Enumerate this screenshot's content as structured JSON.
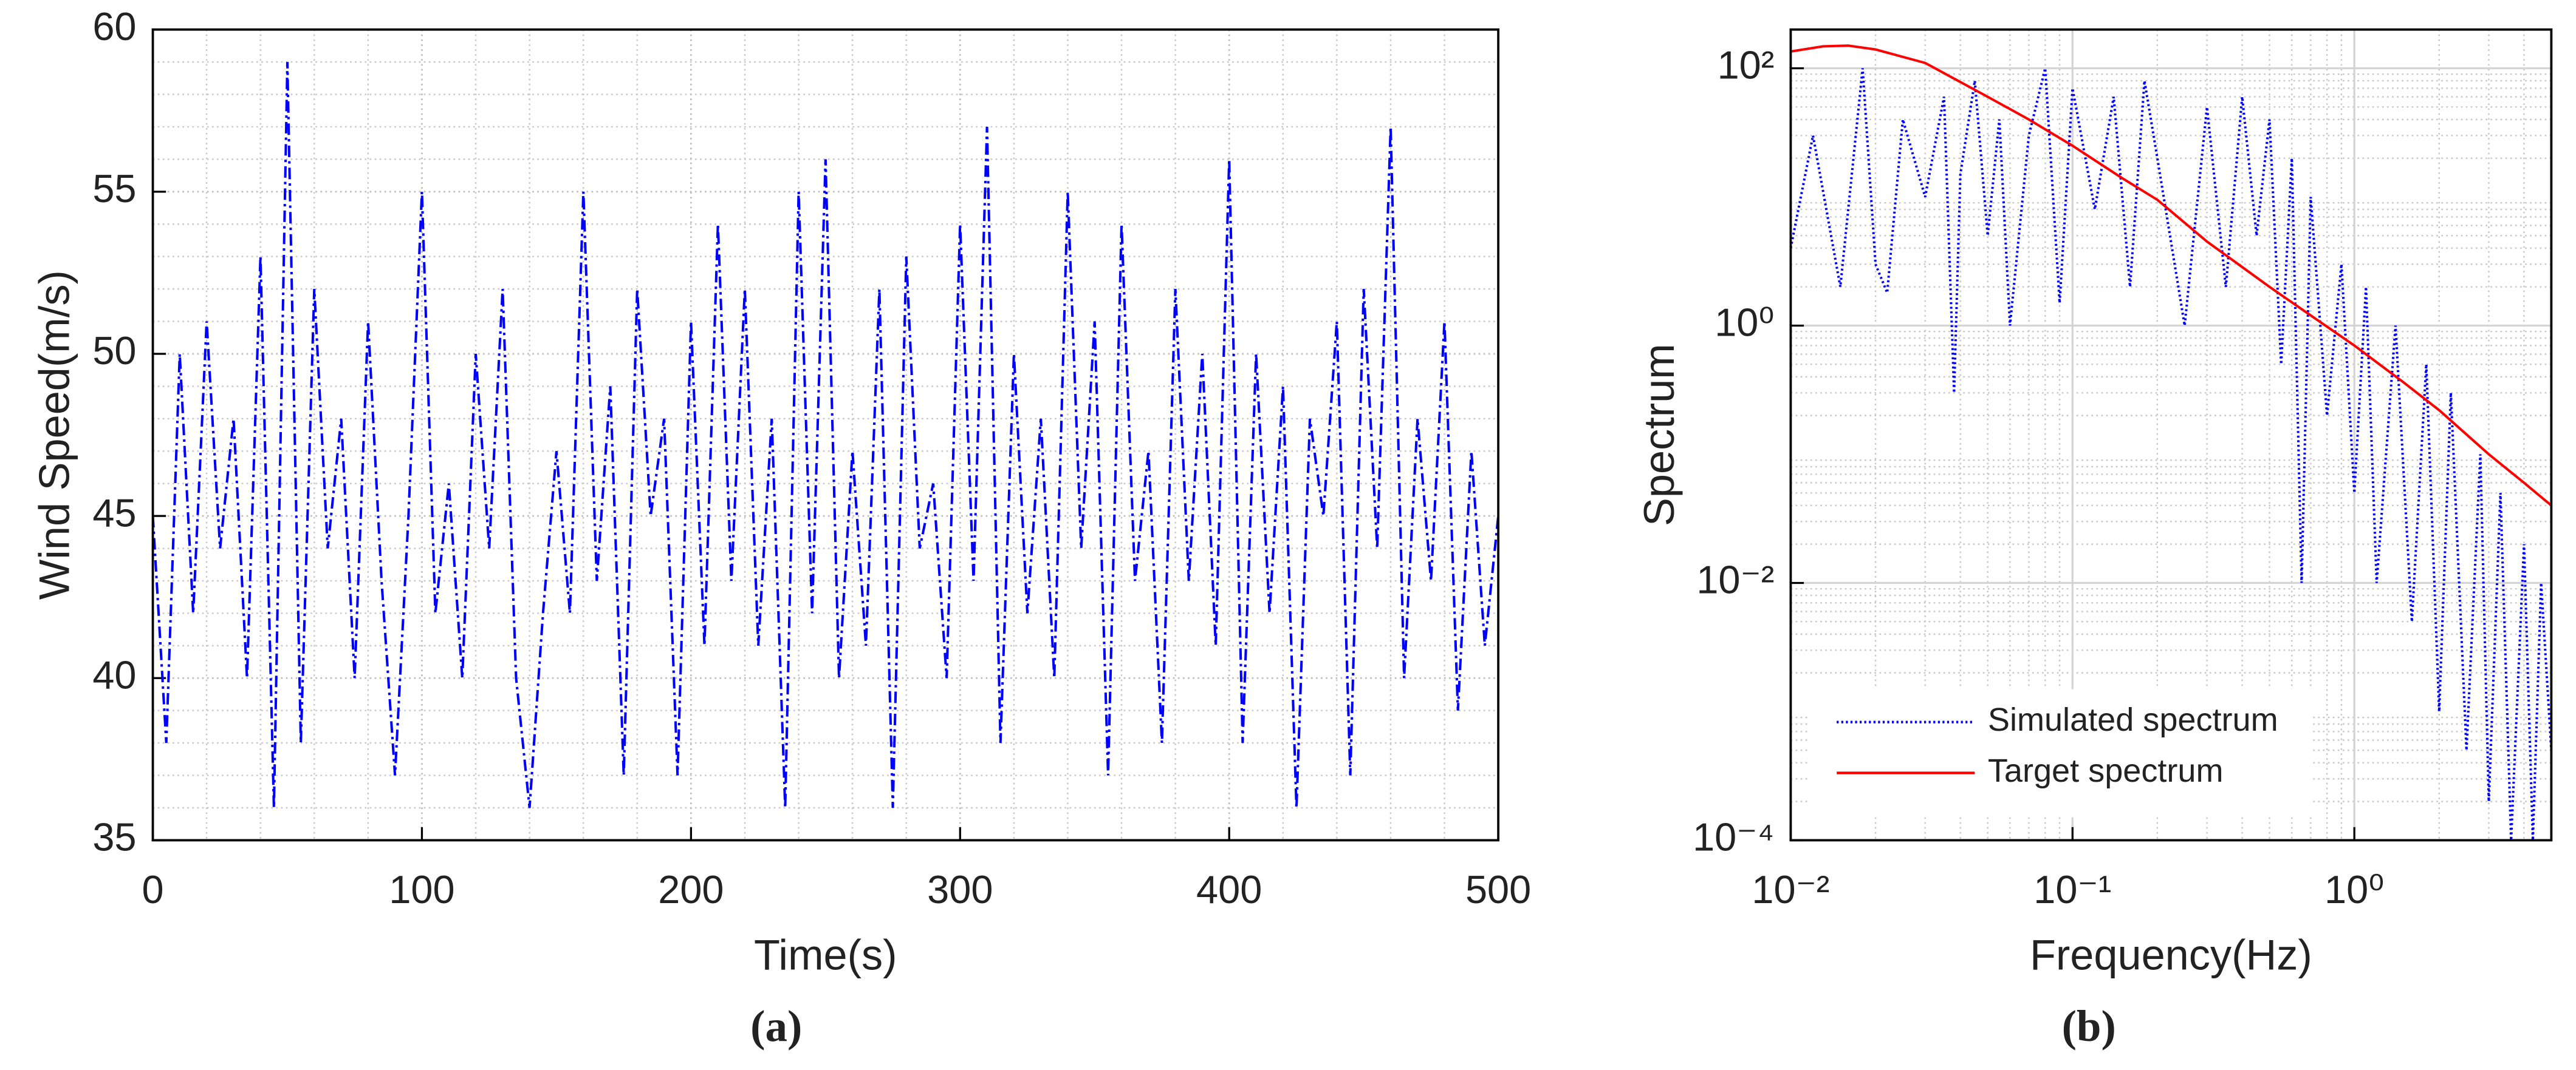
{
  "chart_data": [
    {
      "type": "line",
      "caption": "(a)",
      "xlabel": "Time(s)",
      "ylabel": "Wind Speed(m/s)",
      "xlim": [
        0,
        500
      ],
      "xticks": [
        0,
        100,
        200,
        300,
        400,
        500
      ],
      "ylim": [
        35,
        60
      ],
      "yticks": [
        35,
        40,
        45,
        50,
        55,
        60
      ],
      "grid": true,
      "minor_grid": true,
      "color": "#0000ff",
      "linestyle": "dashdot",
      "x": [
        0,
        5,
        10,
        15,
        20,
        25,
        30,
        35,
        40,
        45,
        50,
        55,
        60,
        65,
        70,
        75,
        80,
        85,
        90,
        95,
        100,
        105,
        110,
        115,
        120,
        125,
        130,
        135,
        140,
        145,
        150,
        155,
        160,
        165,
        170,
        175,
        180,
        185,
        190,
        195,
        200,
        205,
        210,
        215,
        220,
        225,
        230,
        235,
        240,
        245,
        250,
        255,
        260,
        265,
        270,
        275,
        280,
        285,
        290,
        295,
        300,
        305,
        310,
        315,
        320,
        325,
        330,
        335,
        340,
        345,
        350,
        355,
        360,
        365,
        370,
        375,
        380,
        385,
        390,
        395,
        400,
        405,
        410,
        415,
        420,
        425,
        430,
        435,
        440,
        445,
        450,
        455,
        460,
        465,
        470,
        475,
        480,
        485,
        490,
        495,
        500
      ],
      "values": [
        45,
        38,
        50,
        42,
        51,
        44,
        48,
        40,
        53,
        36,
        59,
        38,
        52,
        44,
        48,
        40,
        51,
        43,
        37,
        45,
        55,
        42,
        46,
        40,
        50,
        44,
        52,
        40,
        36,
        42,
        47,
        42,
        55,
        43,
        49,
        37,
        52,
        45,
        48,
        37,
        51,
        41,
        54,
        43,
        52,
        41,
        48,
        36,
        55,
        42,
        56,
        40,
        47,
        41,
        52,
        36,
        53,
        44,
        46,
        40,
        54,
        43,
        57,
        38,
        50,
        42,
        48,
        40,
        55,
        44,
        51,
        37,
        54,
        43,
        47,
        38,
        52,
        43,
        50,
        41,
        56,
        38,
        50,
        42,
        49,
        36,
        48,
        45,
        51,
        37,
        52,
        44,
        57,
        40,
        48,
        43,
        51,
        39,
        47,
        41,
        45
      ]
    },
    {
      "type": "line",
      "caption": "(b)",
      "xlabel": "Frequency(Hz)",
      "ylabel": "Spectrum",
      "xscale": "log",
      "yscale": "log",
      "xlim": [
        0.01,
        5
      ],
      "xticks": [
        {
          "value": 0.01,
          "label": "10⁻²"
        },
        {
          "value": 0.1,
          "label": "10⁻¹"
        },
        {
          "value": 1,
          "label": "10⁰"
        }
      ],
      "ylim": [
        0.0001,
        200
      ],
      "yticks": [
        {
          "value": 0.0001,
          "label": "10⁻⁴"
        },
        {
          "value": 0.01,
          "label": "10⁻²"
        },
        {
          "value": 1,
          "label": "10⁰"
        },
        {
          "value": 100,
          "label": "10²"
        }
      ],
      "grid": true,
      "minor_grid": true,
      "legend": "lower left",
      "series": [
        {
          "name": "Simulated spectrum",
          "color": "#0000ff",
          "linestyle": "dotted",
          "x": [
            0.01,
            0.012,
            0.015,
            0.018,
            0.02,
            0.022,
            0.025,
            0.03,
            0.035,
            0.038,
            0.04,
            0.045,
            0.05,
            0.055,
            0.06,
            0.07,
            0.08,
            0.09,
            0.1,
            0.12,
            0.14,
            0.16,
            0.18,
            0.2,
            0.25,
            0.3,
            0.35,
            0.4,
            0.45,
            0.5,
            0.55,
            0.6,
            0.65,
            0.7,
            0.8,
            0.9,
            1,
            1.1,
            1.2,
            1.4,
            1.6,
            1.8,
            2,
            2.2,
            2.5,
            2.8,
            3,
            3.3,
            3.6,
            4,
            4.3,
            4.6,
            5
          ],
          "values": [
            4,
            30,
            2,
            100,
            3,
            1.8,
            40,
            10,
            60,
            0.3,
            15,
            80,
            5,
            40,
            1,
            30,
            100,
            1.5,
            70,
            8,
            60,
            2,
            80,
            20,
            1,
            50,
            2,
            60,
            5,
            40,
            0.5,
            20,
            0.01,
            10,
            0.2,
            3,
            0.05,
            2,
            0.01,
            1,
            0.005,
            0.5,
            0.001,
            0.3,
            0.0005,
            0.1,
            0.0002,
            0.05,
            0.0001,
            0.02,
            0.0001,
            0.01,
            0.0005
          ]
        },
        {
          "name": "Target spectrum",
          "color": "#ff0000",
          "linestyle": "solid",
          "x": [
            0.01,
            0.013,
            0.016,
            0.02,
            0.03,
            0.05,
            0.07,
            0.1,
            0.15,
            0.2,
            0.3,
            0.5,
            0.7,
            1,
            1.5,
            2,
            3,
            4,
            5
          ],
          "values": [
            135,
            148,
            150,
            140,
            110,
            60,
            40,
            25,
            14,
            9.5,
            4.5,
            2,
            1.2,
            0.7,
            0.36,
            0.22,
            0.1,
            0.06,
            0.04
          ]
        }
      ]
    }
  ]
}
